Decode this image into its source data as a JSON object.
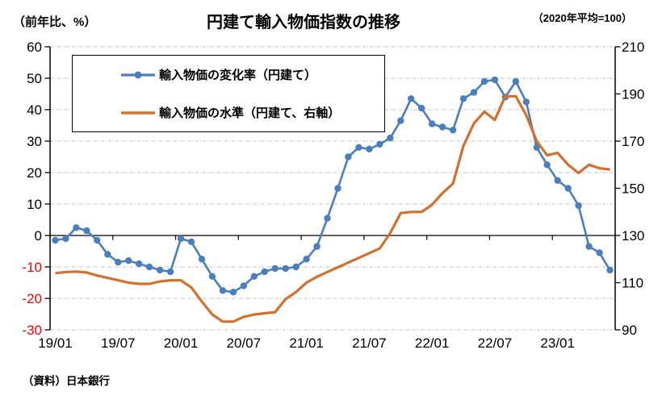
{
  "title": "円建て輸入物価指数の推移",
  "captions": {
    "left": "（前年比、%）",
    "right": "（2020年平均=100）"
  },
  "source": "（資料）日本銀行",
  "colors": {
    "rate_series": "#4A7EBD",
    "level_series": "#D2712E",
    "negative_tick_label": "#FF0000",
    "gridline": "#BFBFBF",
    "axis": "#000000",
    "legend_border": "#000000",
    "background": "#FFFFFF"
  },
  "chart_data": {
    "type": "line",
    "title": "円建て輸入物価指数の推移",
    "x": [
      "19/01",
      "19/02",
      "19/03",
      "19/04",
      "19/05",
      "19/06",
      "19/07",
      "19/08",
      "19/09",
      "19/10",
      "19/11",
      "19/12",
      "20/01",
      "20/02",
      "20/03",
      "20/04",
      "20/05",
      "20/06",
      "20/07",
      "20/08",
      "20/09",
      "20/10",
      "20/11",
      "20/12",
      "21/01",
      "21/02",
      "21/03",
      "21/04",
      "21/05",
      "21/06",
      "21/07",
      "21/08",
      "21/09",
      "21/10",
      "21/11",
      "21/12",
      "22/01",
      "22/02",
      "22/03",
      "22/04",
      "22/05",
      "22/06",
      "22/07",
      "22/08",
      "22/09",
      "22/10",
      "22/11",
      "22/12",
      "23/01",
      "23/02",
      "23/03",
      "23/04",
      "23/05",
      "23/06"
    ],
    "x_tick_labels": [
      "19/01",
      "19/07",
      "20/01",
      "20/07",
      "21/01",
      "21/07",
      "22/01",
      "22/07",
      "23/01"
    ],
    "series": [
      {
        "name": "輸入物価の変化率（円建て）",
        "axis": "left",
        "color": "#4A7EBD",
        "marker": "circle",
        "values": [
          -1.5,
          -1,
          2.5,
          1.5,
          -1.5,
          -6,
          -8.5,
          -8,
          -9,
          -10,
          -11,
          -11.5,
          -1,
          -2,
          -7.5,
          -13,
          -17.5,
          -18,
          -16,
          -13,
          -11.5,
          -10.5,
          -10.5,
          -10,
          -7.5,
          -3.5,
          5.5,
          15,
          25,
          28,
          27.5,
          29,
          31,
          36.5,
          43.5,
          40.5,
          35.5,
          34.5,
          33.5,
          43.5,
          45.5,
          49,
          49.5,
          44,
          49,
          42.5,
          28,
          22.5,
          17.5,
          15,
          9.5,
          -3.5,
          -5.5,
          -11
        ]
      },
      {
        "name": "輸入物価の水準（円建て、右軸）",
        "axis": "right",
        "color": "#D2712E",
        "marker": "none",
        "values": [
          114,
          114.5,
          114.7,
          114.3,
          113,
          112,
          111,
          110,
          109.5,
          109.5,
          110.5,
          111,
          111,
          108,
          102,
          96.5,
          93.5,
          93.5,
          95.5,
          96.5,
          97,
          97.5,
          103,
          106,
          110,
          112.5,
          114.5,
          116.5,
          118.5,
          120.5,
          122.5,
          124.5,
          131,
          139.5,
          140,
          140,
          143,
          148,
          152,
          168,
          177.5,
          182.5,
          179,
          189,
          189,
          181,
          170,
          164,
          165,
          160,
          156.5,
          160,
          158.5,
          158
        ]
      }
    ],
    "left_axis": {
      "caption": "（前年比、%）",
      "min": -30,
      "max": 60,
      "step": 10,
      "ticks": [
        60,
        50,
        40,
        30,
        20,
        10,
        0,
        -10,
        -20,
        -30
      ],
      "negative_label_color": "#FF0000"
    },
    "right_axis": {
      "caption": "（2020年平均=100）",
      "min": 90,
      "max": 210,
      "step": 20,
      "ticks": [
        210,
        190,
        170,
        150,
        130,
        110,
        90
      ]
    },
    "grid": true,
    "zero_line": true,
    "legend_position": "top-left-inside",
    "source": "（資料）日本銀行"
  }
}
